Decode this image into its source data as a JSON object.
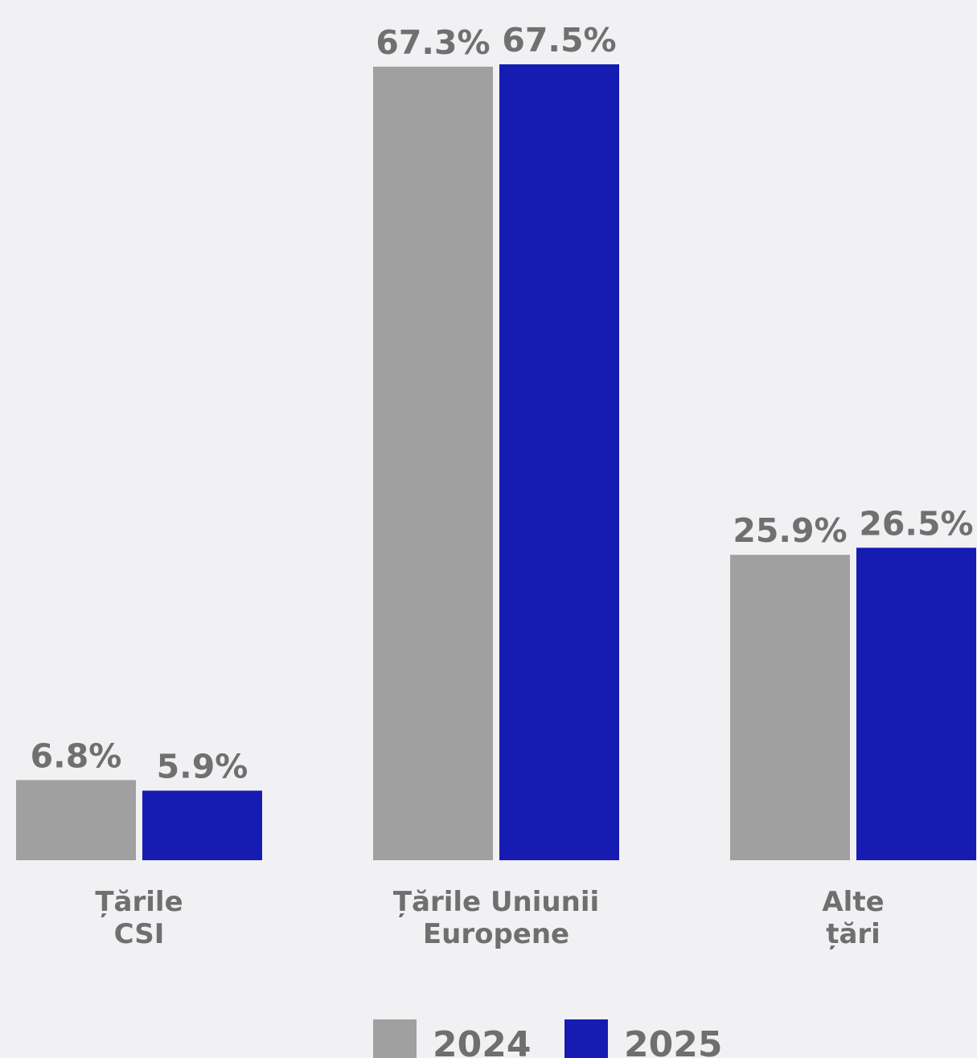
{
  "chart_data": {
    "type": "bar",
    "categories": [
      [
        "Țările",
        "CSI"
      ],
      [
        "Țările Uniunii",
        "Europene"
      ],
      [
        "Alte",
        "țări"
      ]
    ],
    "series": [
      {
        "name": "2024",
        "color": "#a0a0a0",
        "values": [
          6.8,
          67.3,
          25.9
        ],
        "labels": [
          "6.8%",
          "67.3%",
          "25.9%"
        ]
      },
      {
        "name": "2025",
        "color": "#161cb2",
        "values": [
          5.9,
          67.5,
          26.5
        ],
        "labels": [
          "5.9%",
          "67.5%",
          "26.5%"
        ]
      }
    ],
    "ylim": [
      0,
      67.5
    ],
    "grid": false,
    "legend_position": "bottom-center"
  }
}
